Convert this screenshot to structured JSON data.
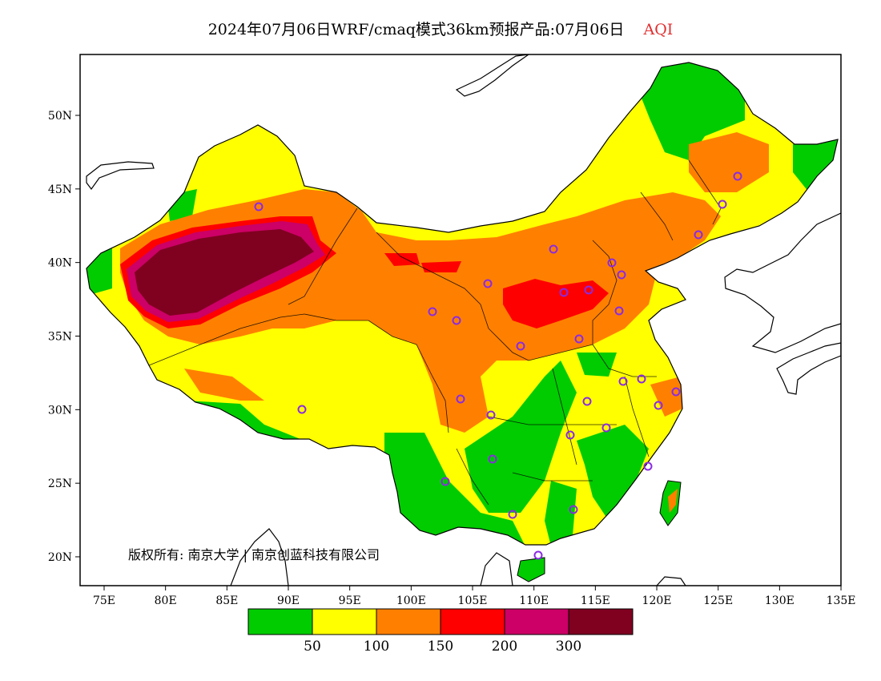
{
  "title": {
    "main": "2024年07月06日WRF/cmaq模式36km预报产品:07月06日",
    "variable": "AQI"
  },
  "axes": {
    "x_ticks": [
      "75E",
      "80E",
      "85E",
      "90E",
      "95E",
      "100E",
      "105E",
      "110E",
      "115E",
      "120E",
      "125E",
      "130E",
      "135E"
    ],
    "y_ticks": [
      "50N",
      "45N",
      "40N",
      "35N",
      "30N",
      "25N",
      "20N"
    ]
  },
  "colorbar": {
    "colors": [
      "#00cc00",
      "#ffff00",
      "#ff8000",
      "#ff0000",
      "#cc0066",
      "#800020"
    ],
    "labels": [
      "50",
      "100",
      "150",
      "200",
      "300"
    ]
  },
  "copyright": "版权所有: 南京大学 | 南京创蓝科技有限公司",
  "stations": [
    [
      323,
      258
    ],
    [
      921,
      220
    ],
    [
      902,
      255
    ],
    [
      872,
      293
    ],
    [
      691,
      311
    ],
    [
      764,
      328
    ],
    [
      776,
      343
    ],
    [
      735,
      362
    ],
    [
      704,
      365
    ],
    [
      609,
      354
    ],
    [
      540,
      389
    ],
    [
      570,
      400
    ],
    [
      773,
      388
    ],
    [
      723,
      423
    ],
    [
      650,
      432
    ],
    [
      778,
      476
    ],
    [
      801,
      473
    ],
    [
      575,
      498
    ],
    [
      733,
      501
    ],
    [
      613,
      518
    ],
    [
      822,
      506
    ],
    [
      844,
      489
    ],
    [
      712,
      543
    ],
    [
      757,
      534
    ],
    [
      615,
      573
    ],
    [
      556,
      601
    ],
    [
      809,
      582
    ],
    [
      640,
      642
    ],
    [
      716,
      636
    ],
    [
      672,
      693
    ],
    [
      377,
      511
    ]
  ]
}
